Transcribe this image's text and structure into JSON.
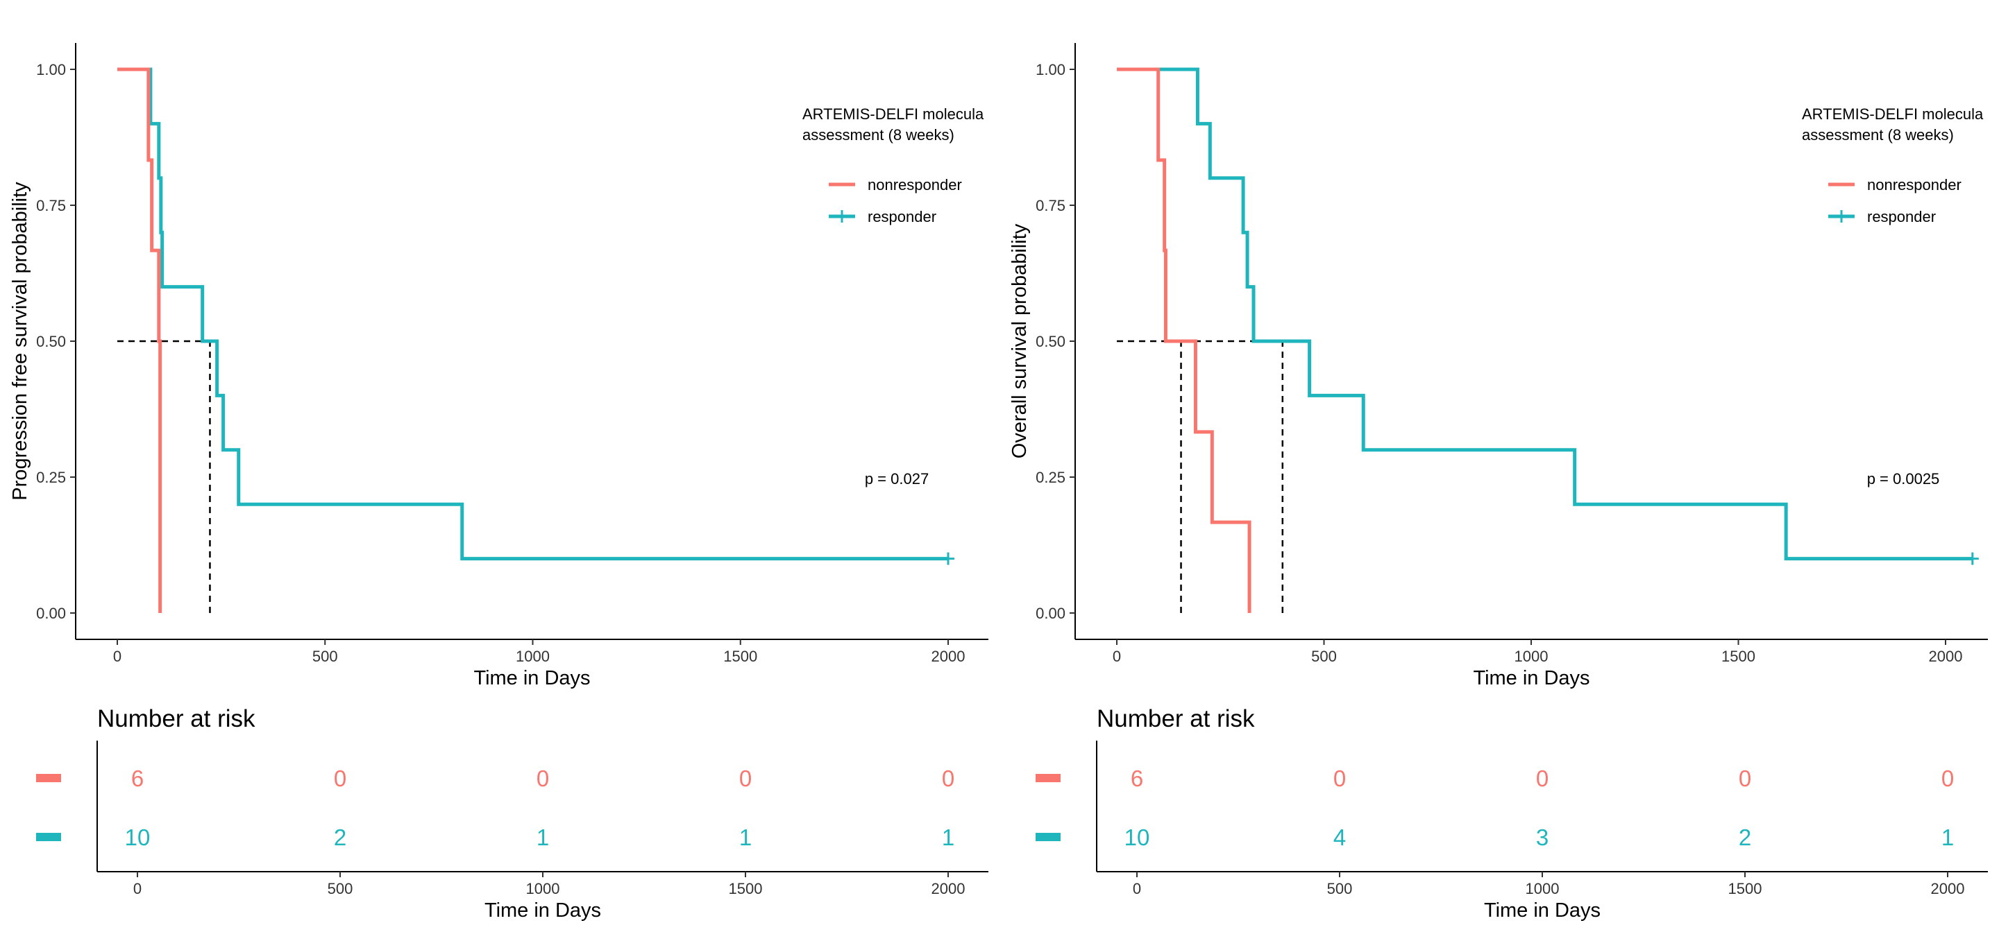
{
  "colors": {
    "nonresponder": "#F8766D",
    "responder": "#1EB5BC",
    "axis": "#000000",
    "median": "#000000"
  },
  "chart_data": [
    {
      "type": "line",
      "subtype": "kaplan-meier",
      "xlabel": "Time in Days",
      "ylabel": "Progression free survival probability",
      "xlim": [
        -100,
        2100
      ],
      "ylim": [
        0,
        1
      ],
      "xticks": [
        0,
        500,
        1000,
        1500,
        2000
      ],
      "yticks": [
        0,
        0.25,
        0.5,
        0.75,
        1
      ],
      "legend": {
        "title_line1": "ARTEMIS-DELFI molecula",
        "title_line2": "assessment (8 weeks)",
        "placement": "top-right"
      },
      "pvalue": "p = 0.027",
      "series": [
        {
          "name": "nonresponder",
          "color": "#F8766D",
          "steps": [
            [
              0,
              1.0
            ],
            [
              75,
              0.833
            ],
            [
              83,
              0.667
            ],
            [
              100,
              0.5
            ],
            [
              103,
              0.0
            ]
          ],
          "censored": []
        },
        {
          "name": "responder",
          "color": "#1EB5BC",
          "steps": [
            [
              0,
              1.0
            ],
            [
              80,
              0.9
            ],
            [
              100,
              0.8
            ],
            [
              105,
              0.7
            ],
            [
              108,
              0.6
            ],
            [
              205,
              0.5
            ],
            [
              240,
              0.4
            ],
            [
              255,
              0.3
            ],
            [
              292,
              0.2
            ],
            [
              830,
              0.1
            ],
            [
              2000,
              0.1
            ]
          ],
          "censored": [
            [
              2000,
              0.1
            ]
          ]
        }
      ],
      "median_lines": [
        103,
        223
      ],
      "risk_table": {
        "title": "Number at risk",
        "xlabel": "Time in Days",
        "times": [
          0,
          500,
          1000,
          1500,
          2000
        ],
        "rows": [
          {
            "name": "nonresponder",
            "counts": [
              "6",
              "0",
              "0",
              "0",
              "0"
            ]
          },
          {
            "name": "responder",
            "counts": [
              "10",
              "2",
              "1",
              "1",
              "1"
            ]
          }
        ]
      }
    },
    {
      "type": "line",
      "subtype": "kaplan-meier",
      "xlabel": "Time in Days",
      "ylabel": "Overall survival probability",
      "xlim": [
        -100,
        2100
      ],
      "ylim": [
        0,
        1
      ],
      "xticks": [
        0,
        500,
        1000,
        1500,
        2000
      ],
      "yticks": [
        0,
        0.25,
        0.5,
        0.75,
        1
      ],
      "legend": {
        "title_line1": "ARTEMIS-DELFI molecula",
        "title_line2": "assessment (8 weeks)",
        "placement": "top-right"
      },
      "pvalue": "p = 0.0025",
      "series": [
        {
          "name": "nonresponder",
          "color": "#F8766D",
          "steps": [
            [
              0,
              1.0
            ],
            [
              100,
              0.833
            ],
            [
              115,
              0.667
            ],
            [
              118,
              0.5
            ],
            [
              190,
              0.333
            ],
            [
              230,
              0.167
            ],
            [
              320,
              0.0
            ]
          ],
          "censored": []
        },
        {
          "name": "responder",
          "color": "#1EB5BC",
          "steps": [
            [
              0,
              1.0
            ],
            [
              195,
              0.9
            ],
            [
              225,
              0.8
            ],
            [
              305,
              0.7
            ],
            [
              315,
              0.6
            ],
            [
              330,
              0.5
            ],
            [
              465,
              0.4
            ],
            [
              595,
              0.3
            ],
            [
              1105,
              0.2
            ],
            [
              1615,
              0.1
            ],
            [
              2065,
              0.1
            ]
          ],
          "censored": [
            [
              2065,
              0.1
            ]
          ]
        }
      ],
      "median_lines": [
        155,
        400
      ],
      "risk_table": {
        "title": "Number at risk",
        "xlabel": "Time in Days",
        "times": [
          0,
          500,
          1000,
          1500,
          2000
        ],
        "rows": [
          {
            "name": "nonresponder",
            "counts": [
              "6",
              "0",
              "0",
              "0",
              "0"
            ]
          },
          {
            "name": "responder",
            "counts": [
              "10",
              "4",
              "3",
              "2",
              "1"
            ]
          }
        ]
      }
    }
  ]
}
